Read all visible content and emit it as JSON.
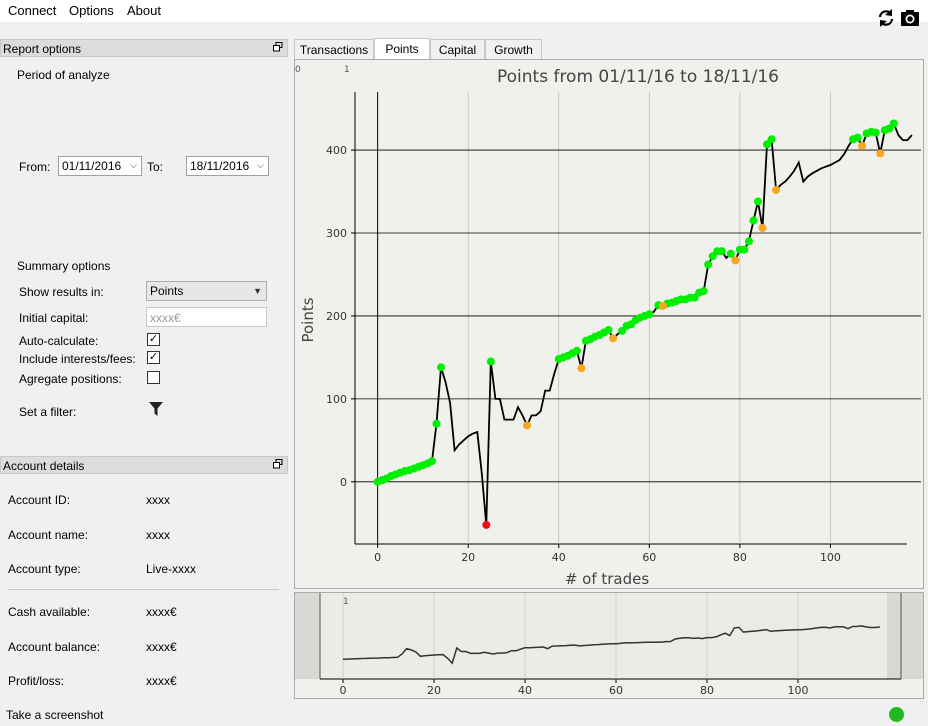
{
  "menu": {
    "connect": "Connect",
    "options": "Options",
    "about": "About"
  },
  "toolbar_icons": [
    "refresh-icon",
    "camera-icon"
  ],
  "report_options": {
    "header": "Report options",
    "period_label": "Period of analyze",
    "from_label": "From:",
    "from_value": "01/11/2016",
    "to_label": "To:",
    "to_value": "18/11/2016",
    "summary_label": "Summary options",
    "show_results_label": "Show results in:",
    "show_results_value": "Points",
    "initial_capital_label": "Initial capital:",
    "initial_capital_placeholder": "xxxx€",
    "auto_calculate_label": "Auto-calculate:",
    "auto_calculate_checked": true,
    "include_fees_label": "Include interests/fees:",
    "include_fees_checked": true,
    "aggregate_label": "Agregate positions:",
    "aggregate_checked": false,
    "filter_label": "Set a filter:"
  },
  "account_details": {
    "header": "Account details",
    "rows": [
      {
        "label": "Account ID:",
        "value": "xxxx"
      },
      {
        "label": "Account name:",
        "value": "xxxx"
      },
      {
        "label": "Account type:",
        "value": "Live-xxxx"
      },
      {
        "label": "Cash available:",
        "value": "xxxx€"
      },
      {
        "label": "Account balance:",
        "value": "xxxx€"
      },
      {
        "label": "Profit/loss:",
        "value": "xxxx€"
      }
    ]
  },
  "tabs": [
    "Transactions",
    "Points",
    "Capital",
    "Growth"
  ],
  "active_tab": "Points",
  "status": {
    "screenshot_label": "Take a screenshot",
    "connected_color": "#1fb81f"
  },
  "chart_data": {
    "type": "line",
    "title": "Points from 01/11/16 to 18/11/16",
    "xlabel": "# of trades",
    "ylabel": "Points",
    "xlim": [
      -5,
      120
    ],
    "ylim": [
      -75,
      470
    ],
    "xticks": [
      0,
      20,
      40,
      60,
      80,
      100
    ],
    "yticks": [
      0,
      100,
      200,
      300,
      400
    ],
    "corner_labels": [
      "0",
      "1"
    ],
    "line_color": "#000000",
    "marker_colors": {
      "win": "#00ee00",
      "loss": "#f5a623",
      "worst": "#ee1111"
    },
    "series": [
      {
        "values": [
          [
            0,
            0
          ],
          [
            1,
            2
          ],
          [
            2,
            4
          ],
          [
            3,
            7
          ],
          [
            4,
            9
          ],
          [
            5,
            11
          ],
          [
            6,
            13
          ],
          [
            7,
            14
          ],
          [
            8,
            16
          ],
          [
            9,
            18
          ],
          [
            10,
            20
          ],
          [
            11,
            22
          ],
          [
            12,
            25
          ],
          [
            13,
            70
          ],
          [
            14,
            138
          ],
          [
            15,
            120
          ],
          [
            16,
            95
          ],
          [
            17,
            38
          ],
          [
            18,
            45
          ],
          [
            19,
            50
          ],
          [
            20,
            55
          ],
          [
            21,
            58
          ],
          [
            22,
            60
          ],
          [
            23,
            10
          ],
          [
            24,
            -52
          ],
          [
            25,
            145
          ],
          [
            26,
            100
          ],
          [
            27,
            100
          ],
          [
            28,
            75
          ],
          [
            29,
            75
          ],
          [
            30,
            75
          ],
          [
            31,
            90
          ],
          [
            32,
            80
          ],
          [
            33,
            68
          ],
          [
            34,
            80
          ],
          [
            35,
            80
          ],
          [
            36,
            85
          ],
          [
            37,
            110
          ],
          [
            38,
            110
          ],
          [
            39,
            130
          ],
          [
            40,
            148
          ],
          [
            41,
            150
          ],
          [
            42,
            152
          ],
          [
            43,
            155
          ],
          [
            44,
            158
          ],
          [
            45,
            137
          ],
          [
            46,
            170
          ],
          [
            47,
            172
          ],
          [
            48,
            175
          ],
          [
            49,
            177
          ],
          [
            50,
            180
          ],
          [
            51,
            183
          ],
          [
            52,
            173
          ],
          [
            53,
            178
          ],
          [
            54,
            182
          ],
          [
            55,
            188
          ],
          [
            56,
            190
          ],
          [
            57,
            195
          ],
          [
            58,
            198
          ],
          [
            59,
            200
          ],
          [
            60,
            202
          ],
          [
            61,
            205
          ],
          [
            62,
            213
          ],
          [
            63,
            212
          ],
          [
            64,
            215
          ],
          [
            65,
            216
          ],
          [
            66,
            218
          ],
          [
            67,
            220
          ],
          [
            68,
            220
          ],
          [
            69,
            222
          ],
          [
            70,
            222
          ],
          [
            71,
            228
          ],
          [
            72,
            230
          ],
          [
            73,
            262
          ],
          [
            74,
            272
          ],
          [
            75,
            278
          ],
          [
            76,
            278
          ],
          [
            77,
            270
          ],
          [
            78,
            275
          ],
          [
            79,
            267
          ],
          [
            80,
            280
          ],
          [
            81,
            280
          ],
          [
            82,
            290
          ],
          [
            83,
            315
          ],
          [
            84,
            338
          ],
          [
            85,
            306
          ],
          [
            86,
            407
          ],
          [
            87,
            413
          ],
          [
            88,
            352
          ],
          [
            89,
            358
          ],
          [
            90,
            362
          ],
          [
            91,
            368
          ],
          [
            92,
            375
          ],
          [
            93,
            385
          ],
          [
            94,
            362
          ],
          [
            95,
            368
          ],
          [
            96,
            372
          ],
          [
            97,
            375
          ],
          [
            98,
            378
          ],
          [
            99,
            380
          ],
          [
            100,
            382
          ],
          [
            101,
            385
          ],
          [
            102,
            388
          ],
          [
            103,
            395
          ],
          [
            104,
            405
          ],
          [
            105,
            413
          ],
          [
            106,
            415
          ],
          [
            107,
            405
          ],
          [
            108,
            420
          ],
          [
            109,
            422
          ],
          [
            110,
            421
          ],
          [
            111,
            396
          ],
          [
            112,
            424
          ],
          [
            113,
            426
          ],
          [
            114,
            432
          ],
          [
            115,
            418
          ],
          [
            116,
            412
          ],
          [
            117,
            412
          ],
          [
            118,
            418
          ]
        ]
      }
    ],
    "markers": {
      "win": [
        [
          0,
          0
        ],
        [
          1,
          2
        ],
        [
          2,
          4
        ],
        [
          3,
          7
        ],
        [
          4,
          9
        ],
        [
          5,
          11
        ],
        [
          6,
          13
        ],
        [
          7,
          14
        ],
        [
          8,
          16
        ],
        [
          9,
          18
        ],
        [
          10,
          20
        ],
        [
          11,
          22
        ],
        [
          12,
          25
        ],
        [
          13,
          70
        ],
        [
          14,
          138
        ],
        [
          25,
          145
        ],
        [
          40,
          148
        ],
        [
          41,
          150
        ],
        [
          42,
          152
        ],
        [
          43,
          155
        ],
        [
          44,
          158
        ],
        [
          46,
          170
        ],
        [
          47,
          172
        ],
        [
          48,
          175
        ],
        [
          49,
          177
        ],
        [
          50,
          180
        ],
        [
          51,
          183
        ],
        [
          54,
          182
        ],
        [
          55,
          188
        ],
        [
          56,
          190
        ],
        [
          57,
          195
        ],
        [
          58,
          198
        ],
        [
          59,
          200
        ],
        [
          60,
          202
        ],
        [
          62,
          213
        ],
        [
          64,
          215
        ],
        [
          65,
          216
        ],
        [
          66,
          218
        ],
        [
          67,
          220
        ],
        [
          68,
          220
        ],
        [
          69,
          222
        ],
        [
          70,
          222
        ],
        [
          71,
          228
        ],
        [
          72,
          230
        ],
        [
          73,
          262
        ],
        [
          74,
          272
        ],
        [
          75,
          278
        ],
        [
          76,
          278
        ],
        [
          78,
          275
        ],
        [
          80,
          280
        ],
        [
          81,
          280
        ],
        [
          82,
          290
        ],
        [
          83,
          315
        ],
        [
          84,
          338
        ],
        [
          86,
          407
        ],
        [
          87,
          413
        ],
        [
          105,
          413
        ],
        [
          106,
          415
        ],
        [
          108,
          420
        ],
        [
          109,
          422
        ],
        [
          110,
          421
        ],
        [
          112,
          424
        ],
        [
          113,
          426
        ],
        [
          114,
          432
        ]
      ],
      "loss": [
        [
          33,
          68
        ],
        [
          45,
          137
        ],
        [
          52,
          173
        ],
        [
          63,
          212
        ],
        [
          79,
          267
        ],
        [
          85,
          306
        ],
        [
          88,
          352
        ],
        [
          107,
          405
        ],
        [
          111,
          396
        ]
      ],
      "worst": [
        [
          24,
          -52
        ]
      ]
    }
  },
  "overview_chart": {
    "type": "line",
    "xticks": [
      0,
      20,
      40,
      60,
      80,
      100
    ],
    "corner_label": "1"
  }
}
